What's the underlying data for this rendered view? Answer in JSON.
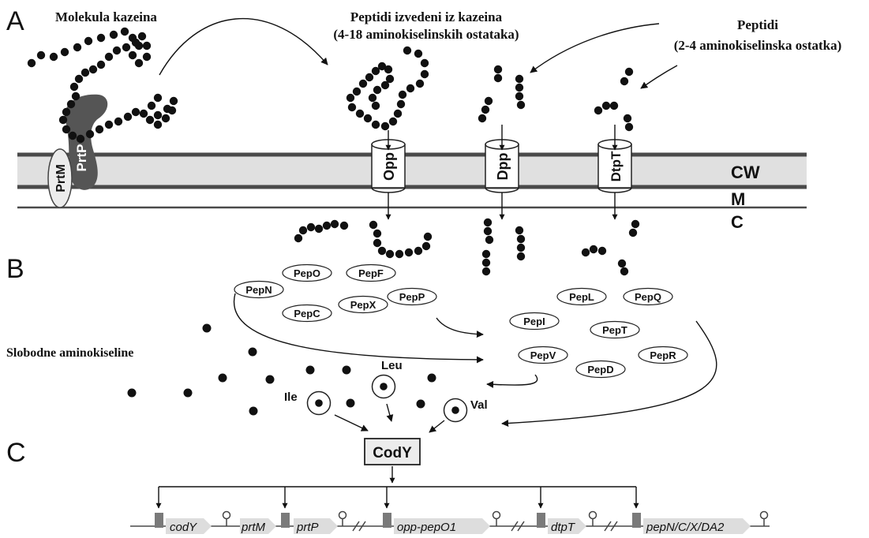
{
  "panels": {
    "a": "A",
    "b": "B",
    "c": "C"
  },
  "labels": {
    "casein_molecule": "Molekula kazeina",
    "casein_peptides_line1": "Peptidi izvedeni iz kazeina",
    "casein_peptides_line2": "(4-18 aminokiselinskih ostataka)",
    "small_peptides_line1": "Peptidi",
    "small_peptides_line2": "(2-4 aminokiselinska ostatka)",
    "free_amino_acids": "Slobodne aminokiseline"
  },
  "layers": {
    "cw": "CW",
    "m": "M",
    "c": "C"
  },
  "proteases": {
    "prtm": "PrtM",
    "prtp": "PrtP"
  },
  "transporters": {
    "opp": "Opp",
    "dpp": "Dpp",
    "dtpt": "DtpT"
  },
  "peptidases": {
    "pepn": "PepN",
    "pepo": "PepO",
    "pepf": "PepF",
    "pepc": "PepC",
    "pepx": "PepX",
    "pepp": "PepP",
    "pepl": "PepL",
    "pepq": "PepQ",
    "pepi": "PepI",
    "pept": "PepT",
    "pepv": "PepV",
    "pepr": "PepR",
    "pepd": "PepD"
  },
  "amino_acids": {
    "leu": "Leu",
    "ile": "Ile",
    "val": "Val"
  },
  "regulator": "CodY",
  "genes": {
    "cody": "codY",
    "prtm": "prtM",
    "prtp": "prtP",
    "opp": "opp-pepO1",
    "dtpt": "dtpT",
    "pep": "pepN/C/X/DA2"
  },
  "colors": {
    "membrane_fill": "#e0e0e0",
    "membrane_line": "#4a4a4a",
    "peptide_bead": "#111111",
    "protease_dark": "#555555",
    "gene_arrow": "#dddddd",
    "binding_box": "#7a7a7a"
  }
}
